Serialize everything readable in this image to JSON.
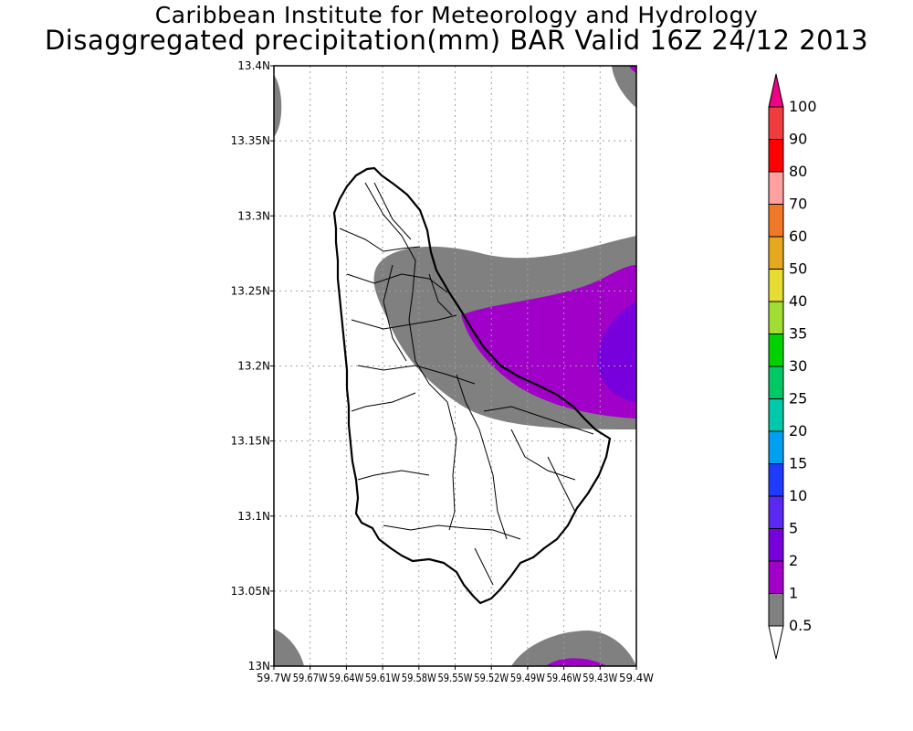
{
  "header": {
    "title": "Caribbean Institute for Meteorology and Hydrology",
    "subtitle": "Disaggregated precipitation(mm) BAR Valid 16Z 24/12 2013"
  },
  "axes": {
    "y_ticks": [
      "13.4N",
      "13.35N",
      "13.3N",
      "13.25N",
      "13.2N",
      "13.15N",
      "13.1N",
      "13.05N",
      "13N"
    ],
    "x_ticks": [
      "59.7W",
      "59.67W",
      "59.64W",
      "59.61W",
      "59.58W",
      "59.55W",
      "59.52W",
      "59.49W",
      "59.46W",
      "59.43W",
      "59.4W"
    ]
  },
  "legend": {
    "levels": [
      "100",
      "90",
      "80",
      "70",
      "60",
      "50",
      "40",
      "35",
      "30",
      "25",
      "20",
      "15",
      "10",
      "5",
      "2",
      "1",
      "0.5"
    ],
    "colors": [
      "#f00082",
      "#f03c3c",
      "#ff0000",
      "#ffa0a0",
      "#f07828",
      "#e6a81e",
      "#e6dc32",
      "#a0dc32",
      "#00d200",
      "#00c864",
      "#00c8aa",
      "#00a0f0",
      "#1e3cff",
      "#5a28f0",
      "#7800dc",
      "#a000c8",
      "#808080",
      "#ffffff"
    ]
  }
}
